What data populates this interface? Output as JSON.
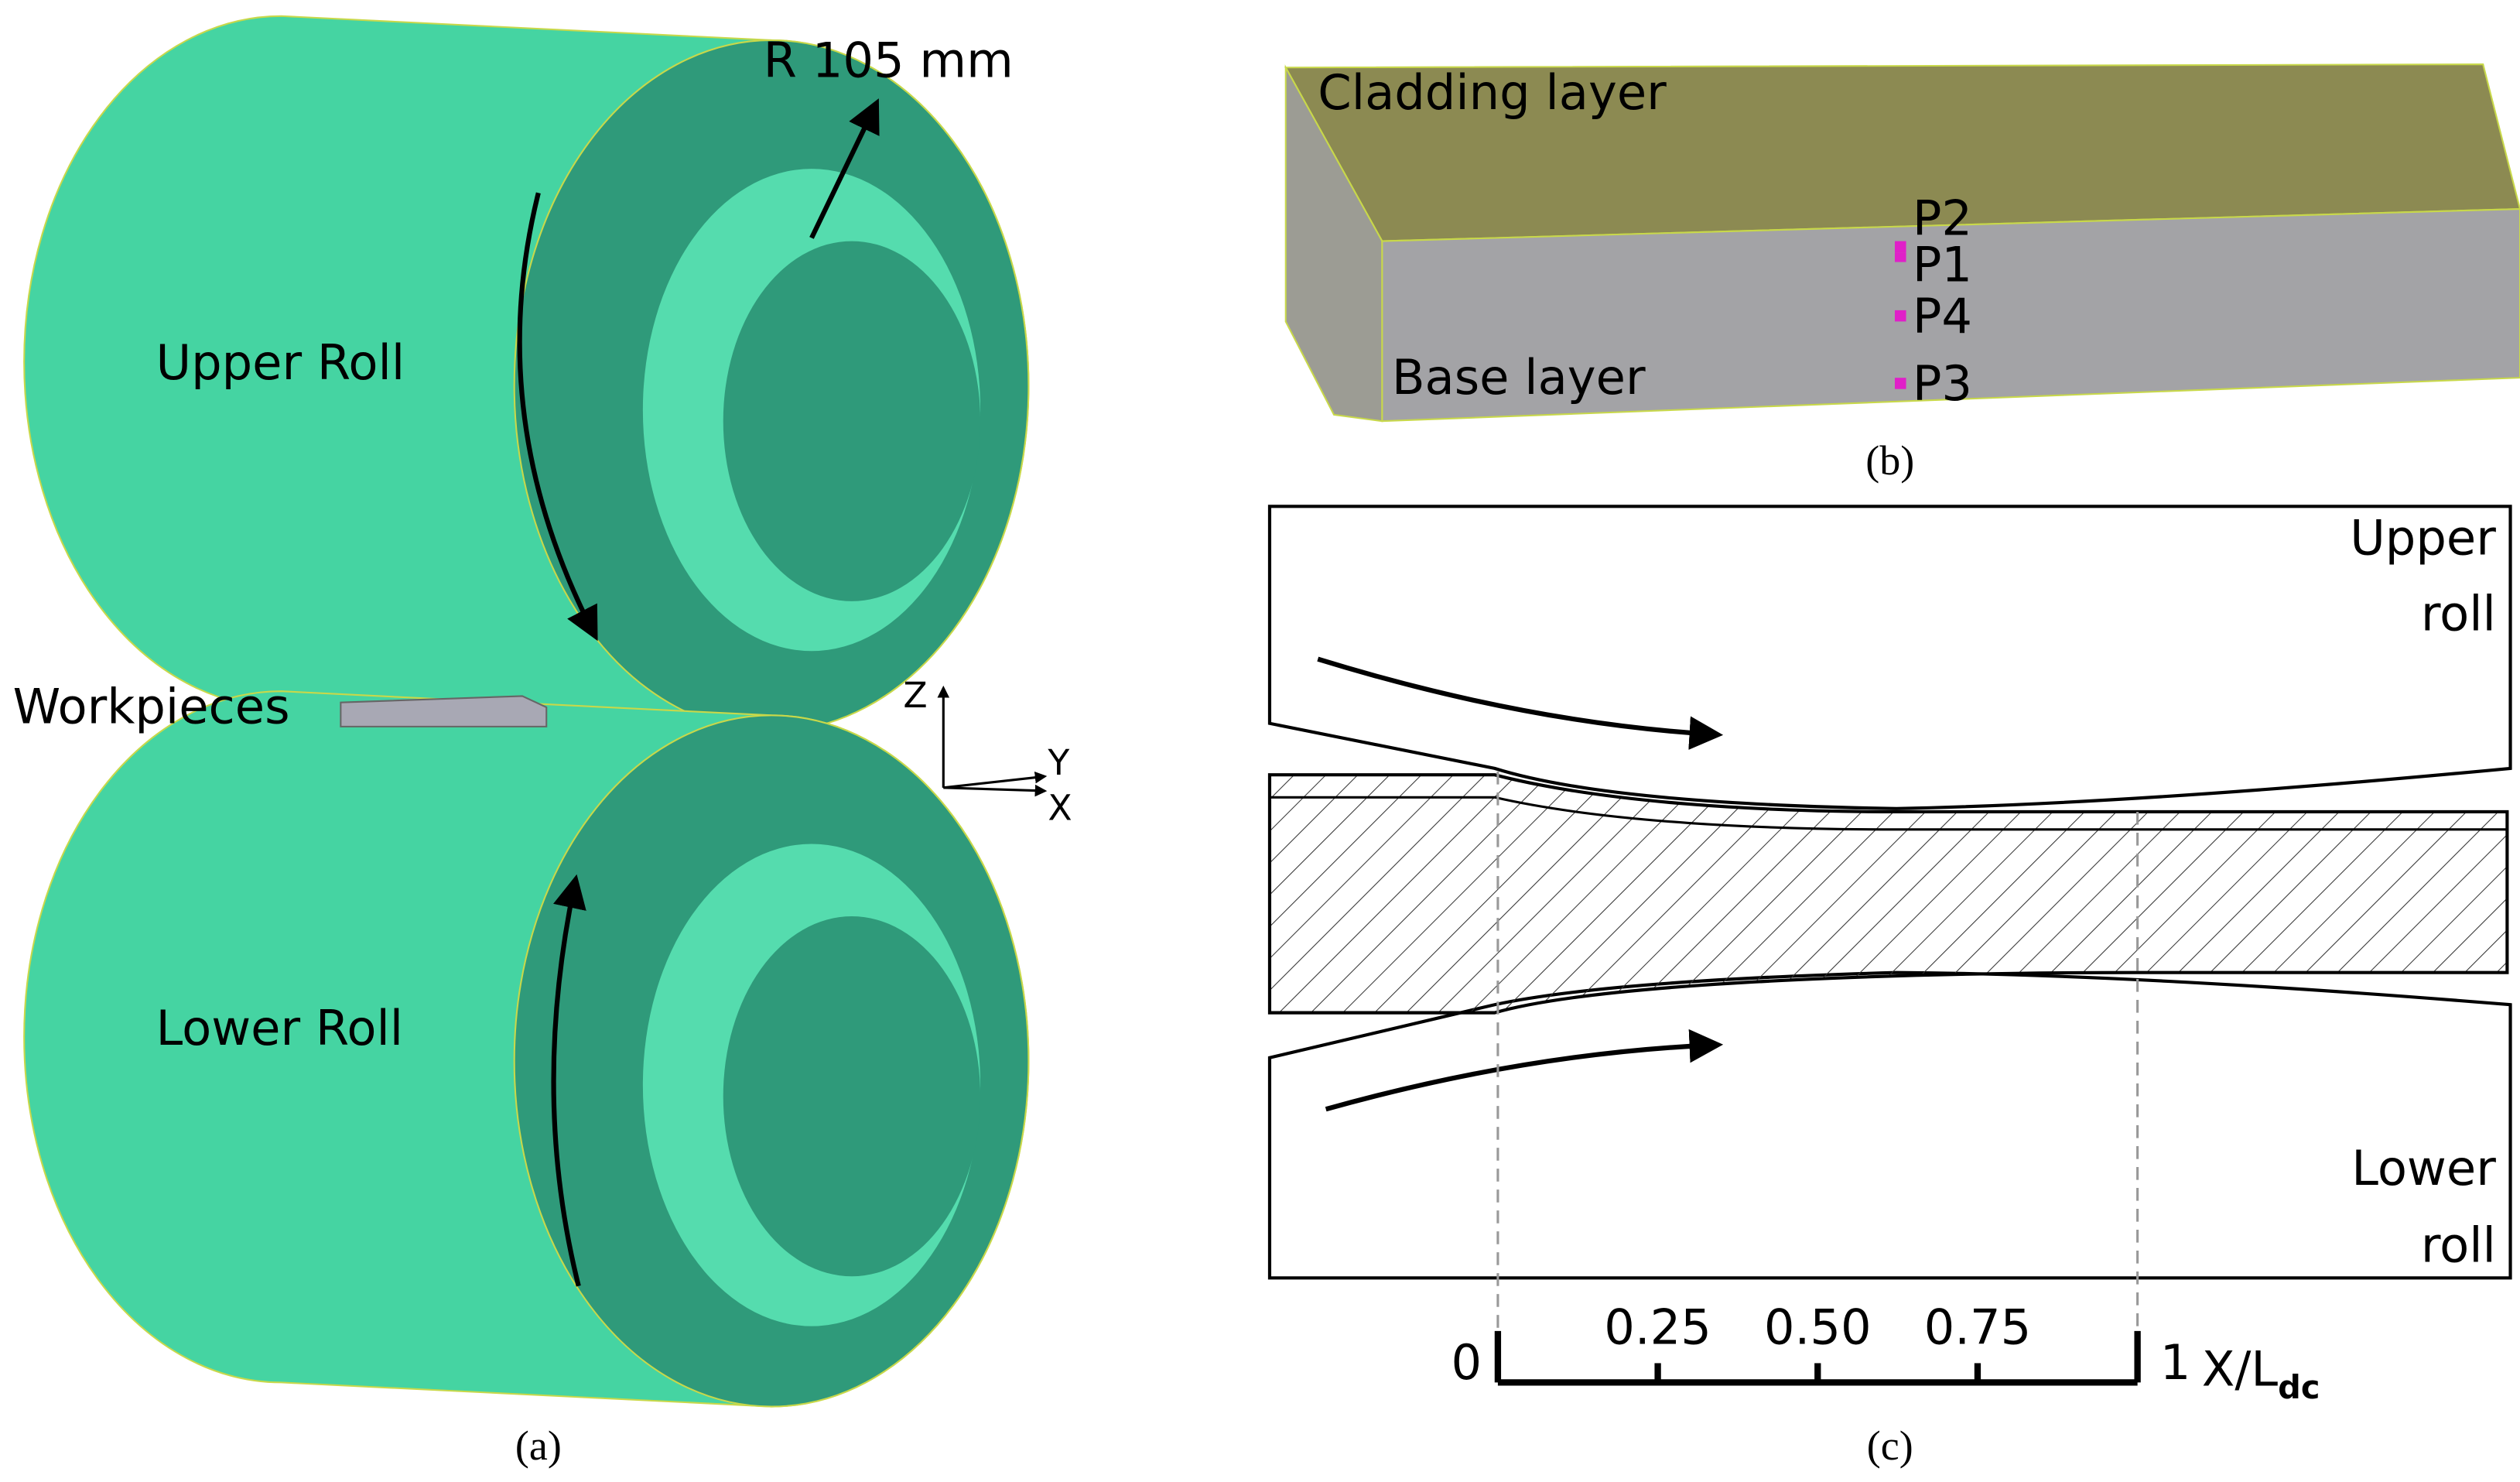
{
  "panel_a": {
    "label": "(a)",
    "radius": "R 105 mm",
    "upper": "Upper Roll",
    "lower": "Lower Roll",
    "workpieces": "Workpieces",
    "axis_z": "Z",
    "axis_y": "Y",
    "axis_x": "X"
  },
  "panel_b": {
    "label": "(b)",
    "cladding": "Cladding layer",
    "base": "Base layer",
    "points": [
      "P2",
      "P1",
      "P4",
      "P3"
    ]
  },
  "panel_c": {
    "label": "(c)",
    "upper_roll": [
      "Upper",
      "roll"
    ],
    "lower_roll": [
      "Lower",
      "roll"
    ],
    "scale": {
      "ticks": [
        "0",
        "0.25",
        "0.50",
        "0.75",
        "1"
      ],
      "axis_label": "X/L",
      "axis_subscript": "dc"
    }
  }
}
